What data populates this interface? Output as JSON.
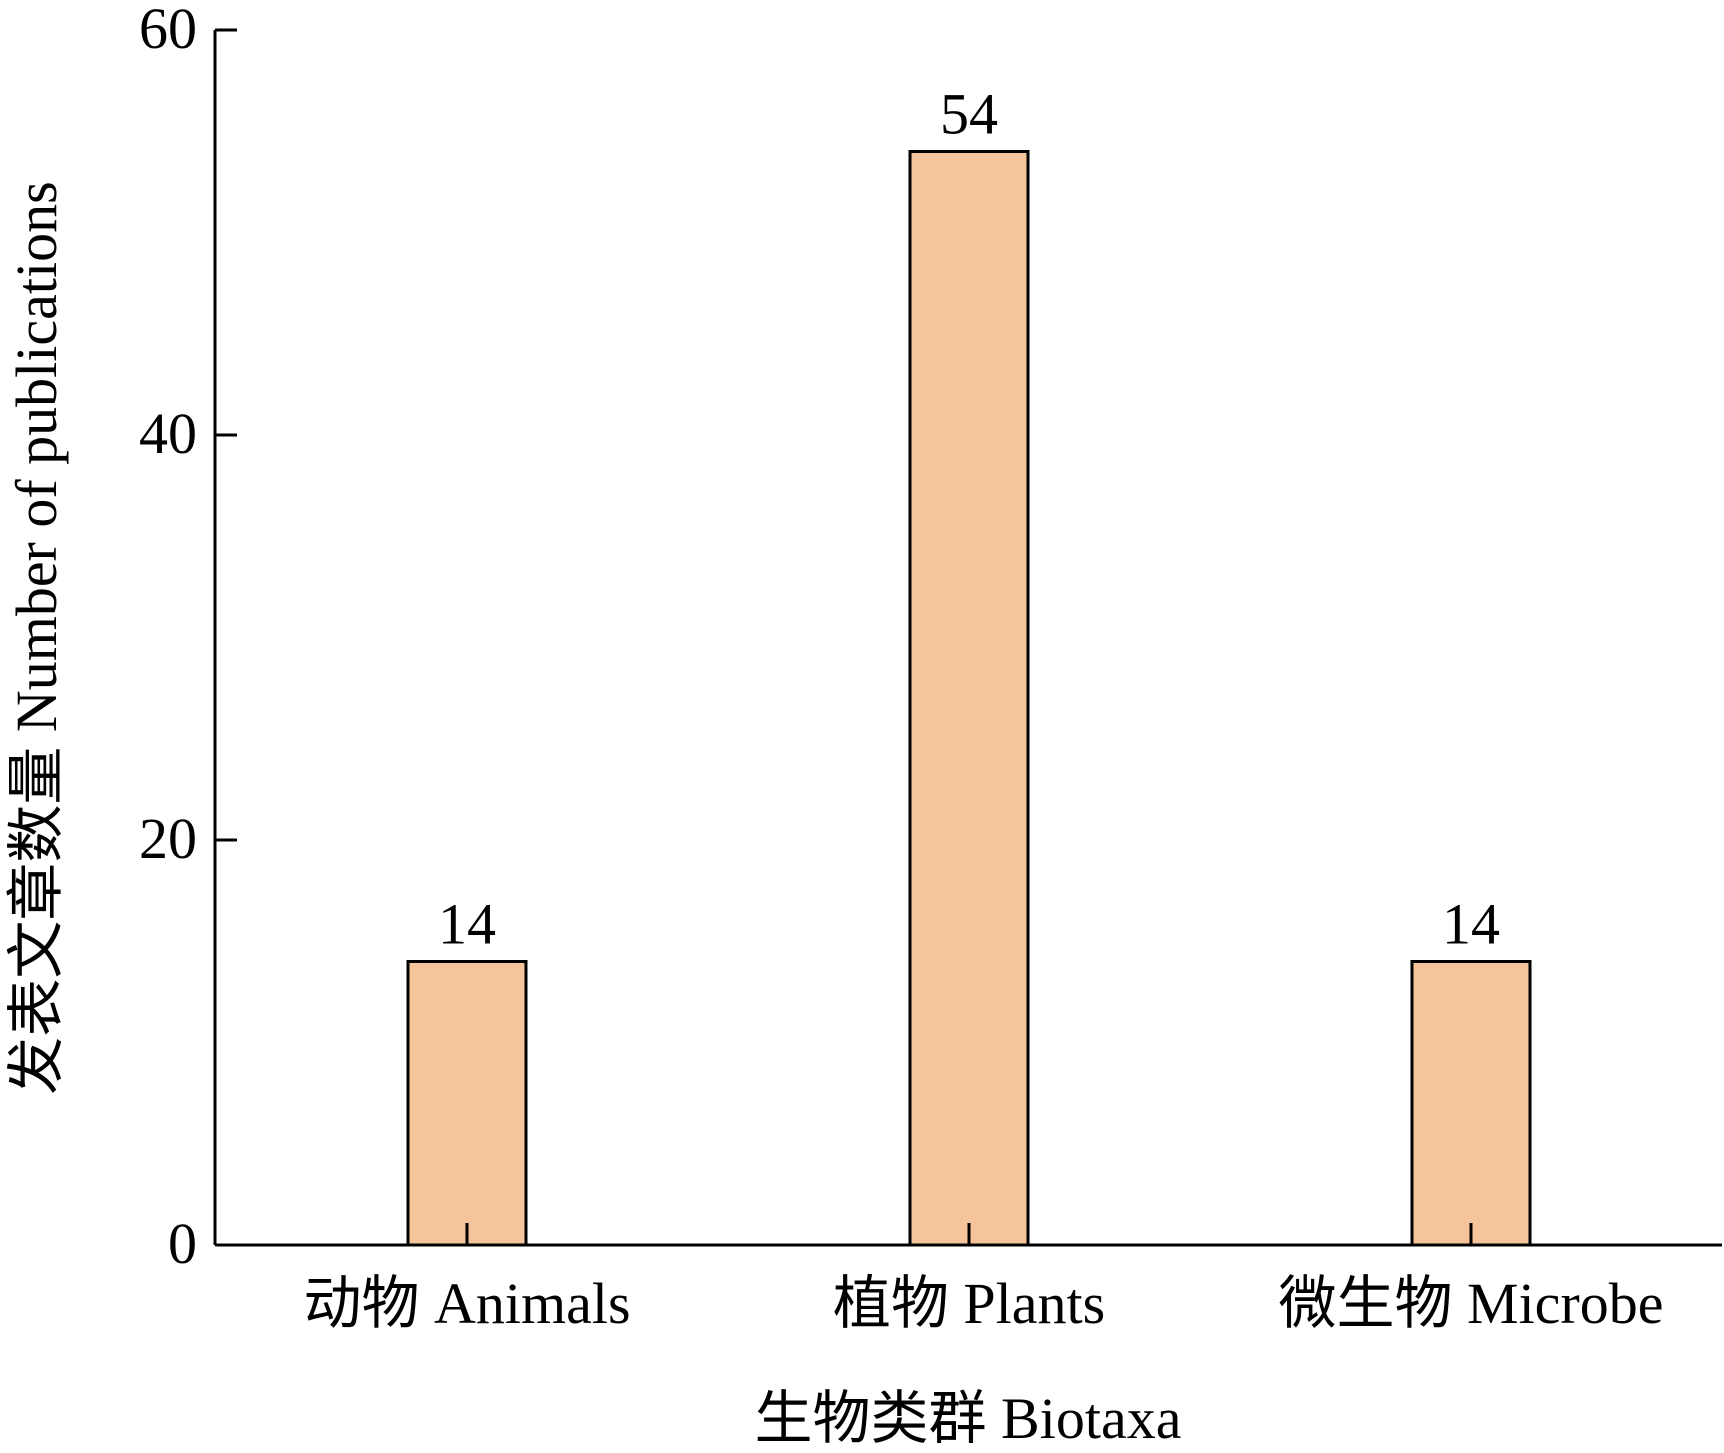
{
  "chart_data": {
    "type": "bar",
    "title": "",
    "xlabel": "生物类群 Biotaxa",
    "ylabel": "发表文章数量 Number of publications",
    "categories": [
      "动物 Animals",
      "植物 Plants",
      "微生物 Microbe"
    ],
    "values": [
      14,
      54,
      14
    ],
    "data_labels": [
      "14",
      "54",
      "14"
    ],
    "ylim": [
      0,
      60
    ],
    "yticks": [
      0,
      20,
      40,
      60
    ],
    "ytick_labels": [
      "0",
      "20",
      "40",
      "60"
    ],
    "grid": false,
    "legend": "none",
    "colors": {
      "bar_fill": "#F5C49A",
      "bar_stroke": "#000000",
      "axis": "#000000"
    }
  }
}
